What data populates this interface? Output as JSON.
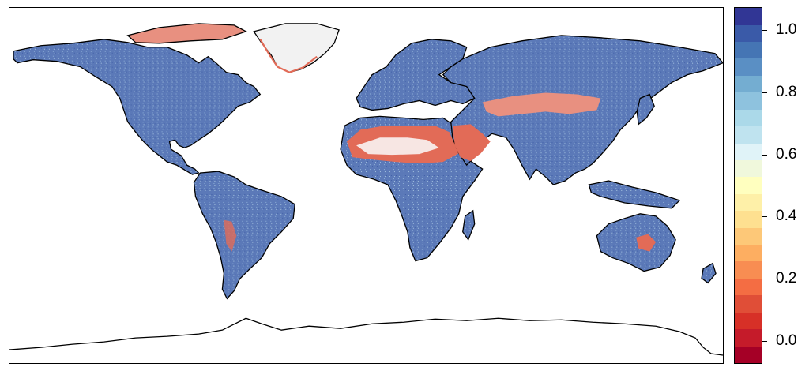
{
  "map": {
    "projection": "equirectangular",
    "coastline_color": "#000000",
    "ocean_color": "#ffffff",
    "dominant_land_color": "#5b79b8",
    "high_value_color": "#4565ae",
    "low_value_color": "#e26b57",
    "regions": [
      {
        "name": "north-america",
        "value": 0.85
      },
      {
        "name": "south-america",
        "value": 0.85
      },
      {
        "name": "europe",
        "value": 0.85
      },
      {
        "name": "africa",
        "value": 0.85
      },
      {
        "name": "asia",
        "value": 0.85
      },
      {
        "name": "australia",
        "value": 0.85
      },
      {
        "name": "sahara-desert",
        "value": 0.1
      },
      {
        "name": "arabian-desert",
        "value": 0.1
      },
      {
        "name": "central-asia-deserts",
        "value": 0.15
      },
      {
        "name": "greenland-margin",
        "value": 0.1
      },
      {
        "name": "central-australia",
        "value": 0.15
      }
    ]
  },
  "colorbar": {
    "min": -0.075,
    "max": 1.075,
    "colors": [
      "#a50026",
      "#c51b2a",
      "#d73027",
      "#e04e37",
      "#f46d43",
      "#f88d52",
      "#fdae61",
      "#fdc878",
      "#fee090",
      "#fef0a8",
      "#ffffbf",
      "#f0f8dc",
      "#e0f3f8",
      "#bfe3ef",
      "#abd9e9",
      "#8ec2de",
      "#74add1",
      "#5a8fc4",
      "#4575b4",
      "#3a5aa8",
      "#313695"
    ],
    "ticks": [
      {
        "value": 0.0,
        "label": "0.0"
      },
      {
        "value": 0.2,
        "label": "0.2"
      },
      {
        "value": 0.4,
        "label": "0.4"
      },
      {
        "value": 0.6,
        "label": "0.6"
      },
      {
        "value": 0.8,
        "label": "0.8"
      },
      {
        "value": 1.0,
        "label": "1.0"
      }
    ]
  }
}
